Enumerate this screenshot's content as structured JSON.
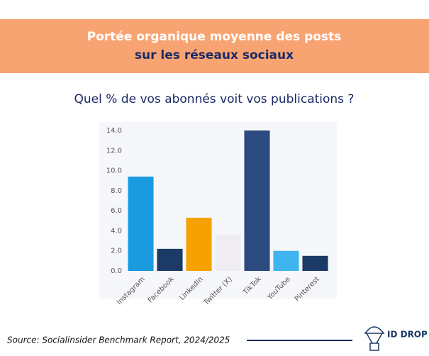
{
  "header": {
    "title_line1": "Portée organique moyenne des posts",
    "title_line2": "sur les réseaux sociaux"
  },
  "chart_data": {
    "type": "bar",
    "subtitle": "Quel % de vos abonnés voit vos publications ?",
    "categories": [
      "Instagram",
      "Facebook",
      "LinkedIn",
      "Twitter (X)",
      "TikTok",
      "YouTube",
      "Pinterest"
    ],
    "values": [
      9.4,
      2.2,
      5.3,
      3.6,
      14.0,
      2.0,
      1.5
    ],
    "colors": [
      "#1a9be0",
      "#1b3a66",
      "#f5a100",
      "#efedf2",
      "#2a4a80",
      "#3fb5f0",
      "#1b3a66"
    ],
    "ylim": [
      0,
      14
    ],
    "yticks": [
      {
        "value": 0,
        "label": "0.0"
      },
      {
        "value": 2,
        "label": "2.0"
      },
      {
        "value": 4,
        "label": "4.0"
      },
      {
        "value": 6,
        "label": "6.0"
      },
      {
        "value": 8,
        "label": "8.0"
      },
      {
        "value": 10,
        "label": "10.0"
      },
      {
        "value": 12,
        "label": "12.0"
      },
      {
        "value": 14,
        "label": "14.0"
      }
    ],
    "grid": false
  },
  "footer": {
    "source": "Source: Socialinsider Benchmark Report, 2024/2025",
    "logo": "ID DROP"
  }
}
